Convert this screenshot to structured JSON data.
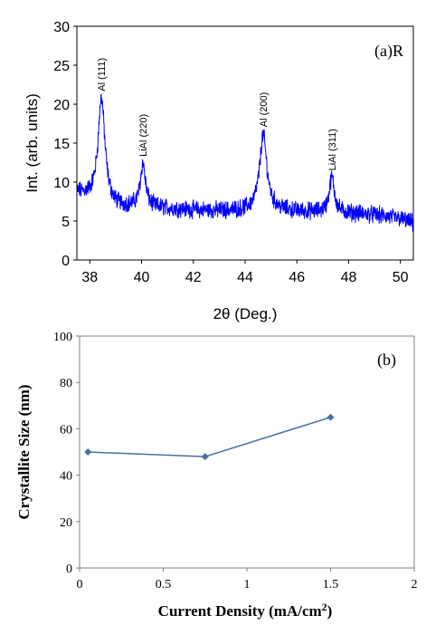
{
  "chart_data": [
    {
      "type": "line",
      "panel_label": "(a)R",
      "xlabel": "2θ (Deg.)",
      "ylabel": "Int. (arb. units)",
      "xlim": [
        37.5,
        50.5
      ],
      "ylim": [
        0,
        30
      ],
      "x_ticks": [
        38,
        40,
        42,
        44,
        46,
        48,
        50
      ],
      "y_ticks": [
        0,
        5,
        10,
        15,
        20,
        25,
        30
      ],
      "series": [
        {
          "color": "#0000ff",
          "baseline": [
            [
              37.5,
              8.6
            ],
            [
              38.0,
              8.0
            ],
            [
              39.0,
              6.8
            ],
            [
              40.0,
              6.7
            ],
            [
              41.0,
              6.6
            ],
            [
              42.0,
              6.4
            ],
            [
              43.0,
              6.3
            ],
            [
              44.0,
              6.3
            ],
            [
              45.0,
              6.4
            ],
            [
              46.0,
              6.2
            ],
            [
              47.0,
              6.1
            ],
            [
              48.0,
              6.0
            ],
            [
              49.0,
              5.8
            ],
            [
              50.0,
              5.3
            ],
            [
              50.5,
              4.7
            ]
          ],
          "noise_amplitude": 0.9,
          "peaks": [
            {
              "center": 38.45,
              "height": 20.8,
              "width": 0.16
            },
            {
              "center": 40.05,
              "height": 12.3,
              "width": 0.12
            },
            {
              "center": 44.7,
              "height": 16.0,
              "width": 0.17
            },
            {
              "center": 47.35,
              "height": 10.6,
              "width": 0.12
            }
          ]
        }
      ],
      "annotations": [
        {
          "text": "Al (111)",
          "x": 38.45,
          "y": 21.2
        },
        {
          "text": "LiAl (220)",
          "x": 40.05,
          "y": 12.8
        },
        {
          "text": "Al (200)",
          "x": 44.7,
          "y": 16.6
        },
        {
          "text": "LiAl (311)",
          "x": 47.35,
          "y": 11.0
        }
      ]
    },
    {
      "type": "line",
      "panel_label": "(b)",
      "xlabel": "Current Density (mA/cm",
      "xlabel_sup": "2",
      "xlabel_tail": ")",
      "ylabel": "Crystallite Size (nm)",
      "xlim": [
        0,
        2
      ],
      "ylim": [
        0,
        100
      ],
      "x_ticks": [
        "0",
        "0.5",
        "1",
        "1.5",
        "2"
      ],
      "y_ticks": [
        "0",
        "20",
        "40",
        "60",
        "80",
        "100"
      ],
      "series": [
        {
          "color": "#4a6fa5",
          "marker": "diamond",
          "x": [
            0.05,
            0.75,
            1.5
          ],
          "y": [
            50,
            48,
            65
          ]
        }
      ]
    }
  ]
}
